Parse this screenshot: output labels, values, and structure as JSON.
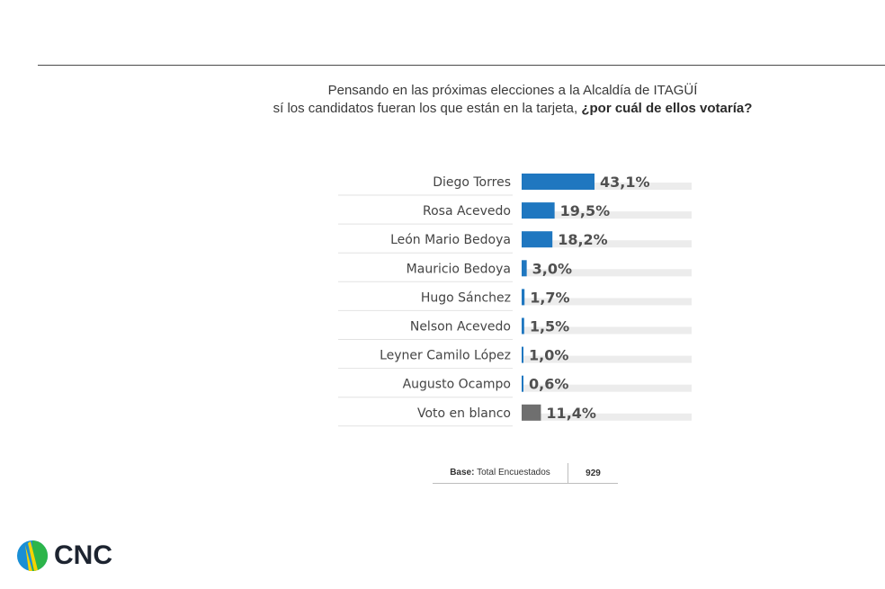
{
  "header": {
    "question_line1": "Pensando en las próximas elecciones a la Alcaldía de ITAGÜÍ",
    "question_line2_prefix": "sí los candidatos fueran  los que están en la tarjeta, ",
    "question_line2_emph": "¿por cuál de ellos votaría?"
  },
  "chart_data": {
    "type": "bar",
    "orientation": "horizontal",
    "categories": [
      "Diego Torres",
      "Rosa Acevedo",
      "León Mario Bedoya",
      "Mauricio Bedoya",
      "Hugo Sánchez",
      "Nelson Acevedo",
      "Leyner Camilo López",
      "Augusto Ocampo",
      "Voto en blanco"
    ],
    "values": [
      43.1,
      19.5,
      18.2,
      3.0,
      1.7,
      1.5,
      1.0,
      0.6,
      11.4
    ],
    "value_labels": [
      "43,1%",
      "19,5%",
      "18,2%",
      "3,0%",
      "1,7%",
      "1,5%",
      "1,0%",
      "0,6%",
      "11,4%"
    ],
    "xlim": [
      0,
      100
    ],
    "unit": "%",
    "colors": {
      "candidate": "#1f77c0",
      "blank": "#6f6f6f",
      "track": "#ececec"
    }
  },
  "footer": {
    "base_label": "Base:",
    "base_text": "Total Encuestados",
    "base_value": "929"
  },
  "logo": {
    "text": "CNC",
    "icon": "cnc-logo-icon"
  }
}
